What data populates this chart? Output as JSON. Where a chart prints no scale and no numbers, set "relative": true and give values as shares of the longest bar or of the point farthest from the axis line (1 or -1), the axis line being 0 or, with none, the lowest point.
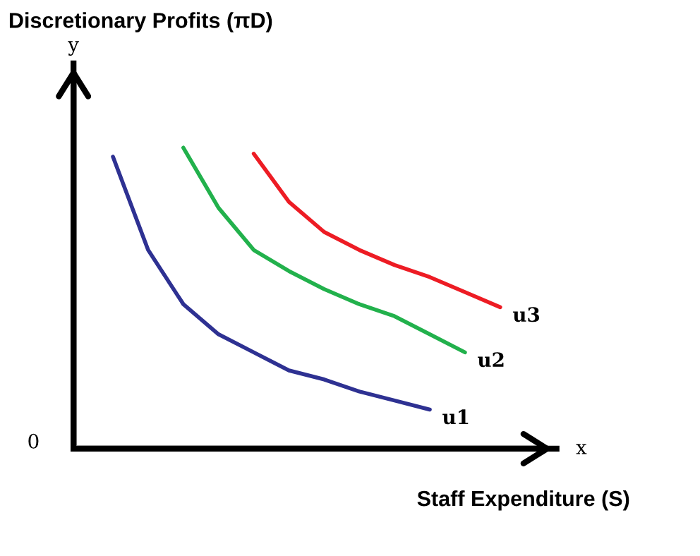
{
  "chart_data": {
    "type": "line",
    "relative": true,
    "xlabel": "Staff Expenditure (S)",
    "annotations": [
      "y",
      "x",
      "0",
      "Discretionary Profits (πD)"
    ],
    "marker": "none",
    "line_style": "solid",
    "categories": [
      null,
      null,
      null,
      null,
      null,
      null,
      null,
      null,
      null,
      null,
      null,
      null
    ],
    "series": [
      {
        "name": "u1",
        "color": "#2e3192",
        "values": [
          0.97,
          0.66,
          0.48,
          0.38,
          0.32,
          0.26,
          0.23,
          0.19,
          0.16,
          0.13,
          null,
          null
        ]
      },
      {
        "name": "u2",
        "color": "#22b14c",
        "values": [
          null,
          null,
          1.0,
          0.8,
          0.66,
          0.59,
          0.53,
          0.48,
          0.44,
          0.38,
          0.32,
          null
        ]
      },
      {
        "name": "u3",
        "color": "#ed1c24",
        "values": [
          null,
          null,
          null,
          null,
          0.98,
          0.82,
          0.72,
          0.66,
          0.61,
          0.57,
          0.52,
          0.47
        ]
      }
    ]
  }
}
